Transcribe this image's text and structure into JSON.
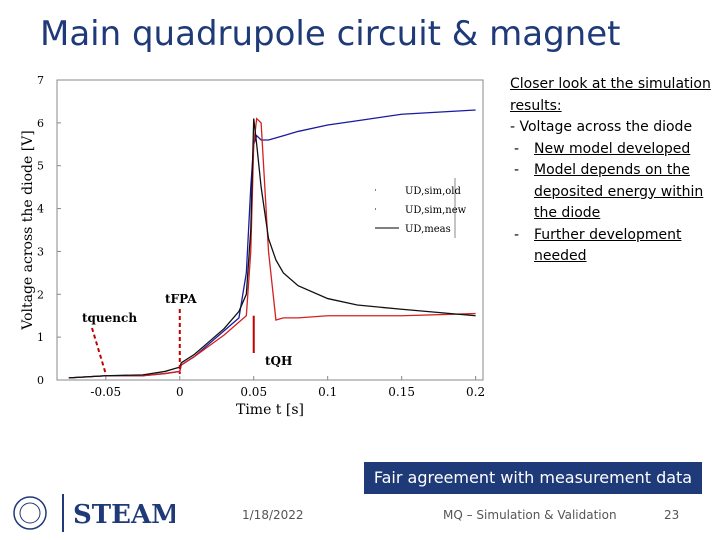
{
  "slide": {
    "title": "Main quadrupole circuit & magnet",
    "notes_heading": "Closer look at the simulation results:",
    "notes_item": "- Voltage across the diode",
    "notes_subitems": [
      "New model developed",
      "Model depends on the deposited energy within the diode",
      "Further development needed"
    ],
    "callout": "Fair agreement with measurement data",
    "logo_text": "STEAM",
    "footer_date": "1/18/2022",
    "footer_text": "MQ – Simulation & Validation",
    "page_number": "23"
  },
  "chart_data": {
    "type": "line",
    "x_label": "Time t [s]",
    "y_label": "Voltage across the diode [V]",
    "x": [
      -0.075,
      -0.05,
      -0.025,
      -0.01,
      0,
      0.001,
      0.01,
      0.02,
      0.03,
      0.04,
      0.045,
      0.048,
      0.05,
      0.052,
      0.055,
      0.06,
      0.065,
      0.07,
      0.08,
      0.1,
      0.12,
      0.15,
      0.2
    ],
    "series": [
      {
        "name": "UD,sim,old",
        "color": "#1a1aa0",
        "values": [
          0.05,
          0.1,
          0.1,
          0.15,
          0.2,
          0.35,
          0.55,
          0.85,
          1.15,
          1.45,
          2.5,
          4.5,
          5.5,
          5.7,
          5.6,
          5.6,
          5.65,
          5.7,
          5.8,
          5.95,
          6.05,
          6.2,
          6.3
        ]
      },
      {
        "name": "UD,sim,new",
        "color": "#d42020",
        "values": [
          0.05,
          0.1,
          0.1,
          0.15,
          0.2,
          0.35,
          0.55,
          0.8,
          1.05,
          1.35,
          1.5,
          3.0,
          5.5,
          6.1,
          6.0,
          3.0,
          1.4,
          1.45,
          1.45,
          1.5,
          1.5,
          1.5,
          1.55
        ]
      },
      {
        "name": "UD,meas",
        "color": "#111111",
        "values": [
          0.05,
          0.1,
          0.12,
          0.2,
          0.3,
          0.4,
          0.6,
          0.9,
          1.2,
          1.6,
          2.0,
          3.5,
          6.1,
          5.5,
          4.5,
          3.3,
          2.8,
          2.5,
          2.2,
          1.9,
          1.75,
          1.65,
          1.5
        ]
      }
    ],
    "annotations": [
      {
        "text": "tquench",
        "x": -0.05
      },
      {
        "text": "tFPA",
        "x": 0
      },
      {
        "text": "tQH",
        "x": 0.05
      }
    ],
    "xlim": [
      -0.083,
      0.205
    ],
    "ylim": [
      0,
      7
    ],
    "xticks": [
      -0.05,
      0,
      0.05,
      0.1,
      0.15,
      0.2
    ],
    "yticks": [
      0,
      1,
      2,
      3,
      4,
      5,
      6,
      7
    ]
  }
}
